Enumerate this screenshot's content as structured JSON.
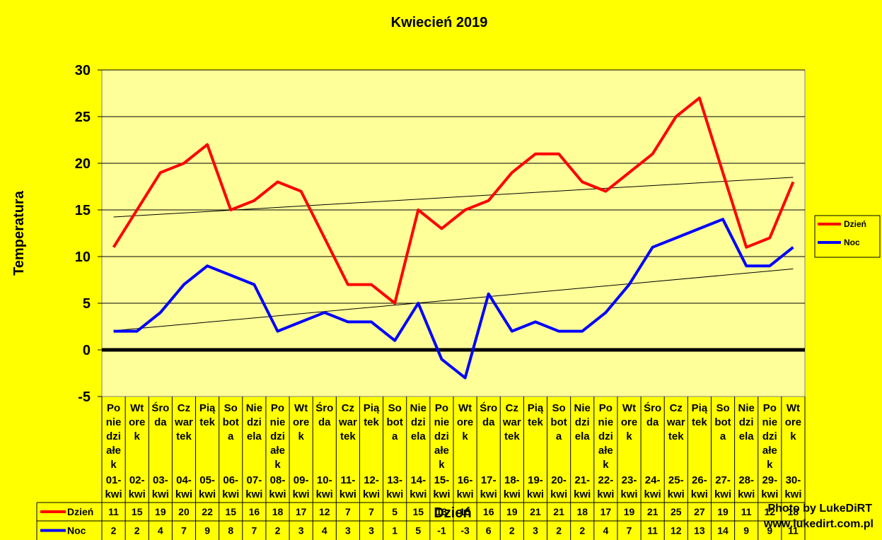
{
  "chart_data": {
    "type": "line",
    "title": "Kwiecień 2019",
    "xlabel": "Dzień",
    "ylabel": "Temperatura",
    "ylim": [
      -5,
      30
    ],
    "yticks": [
      -5,
      0,
      5,
      10,
      15,
      20,
      25,
      30
    ],
    "grid": true,
    "legend_position": "right",
    "weekdays": [
      "Po nie dzi ałe k",
      "Wt ore k",
      "Śro da",
      "Cz war tek",
      "Pią tek",
      "So bot a",
      "Nie dzi ela",
      "Po nie dzi ałe k",
      "Wt ore k",
      "Śro da",
      "Cz war tek",
      "Pią tek",
      "So bot a",
      "Nie dzi ela",
      "Po nie dzi ałe k",
      "Wt ore k",
      "Śro da",
      "Cz war tek",
      "Pią tek",
      "So bot a",
      "Nie dzi ela",
      "Po nie dzi ałe k",
      "Wt ore k",
      "Śro da",
      "Cz war tek",
      "Pią tek",
      "So bot a",
      "Nie dzi ela",
      "Po nie dzi ałe k",
      "Wt ore k"
    ],
    "categories": [
      "01- kwi",
      "02- kwi",
      "03- kwi",
      "04- kwi",
      "05- kwi",
      "06- kwi",
      "07- kwi",
      "08- kwi",
      "09- kwi",
      "10- kwi",
      "11- kwi",
      "12- kwi",
      "13- kwi",
      "14- kwi",
      "15- kwi",
      "16- kwi",
      "17- kwi",
      "18- kwi",
      "19- kwi",
      "20- kwi",
      "21- kwi",
      "22- kwi",
      "23- kwi",
      "24- kwi",
      "25- kwi",
      "26- kwi",
      "27- kwi",
      "28- kwi",
      "29- kwi",
      "30- kwi"
    ],
    "series": [
      {
        "name": "Dzień",
        "color": "#FF0000",
        "values": [
          11,
          15,
          19,
          20,
          22,
          15,
          16,
          18,
          17,
          12,
          7,
          7,
          5,
          15,
          13,
          15,
          16,
          19,
          21,
          21,
          18,
          17,
          19,
          21,
          25,
          27,
          19,
          11,
          12,
          18
        ]
      },
      {
        "name": "Noc",
        "color": "#0000FF",
        "values": [
          2,
          2,
          4,
          7,
          9,
          8,
          7,
          2,
          3,
          4,
          3,
          3,
          1,
          5,
          -1,
          -3,
          6,
          2,
          3,
          2,
          2,
          4,
          7,
          11,
          12,
          13,
          14,
          9,
          9,
          11
        ]
      }
    ]
  },
  "credit": {
    "line1": "Photo by LukeDiRT",
    "line2": "www.lukedirt.com.pl"
  }
}
